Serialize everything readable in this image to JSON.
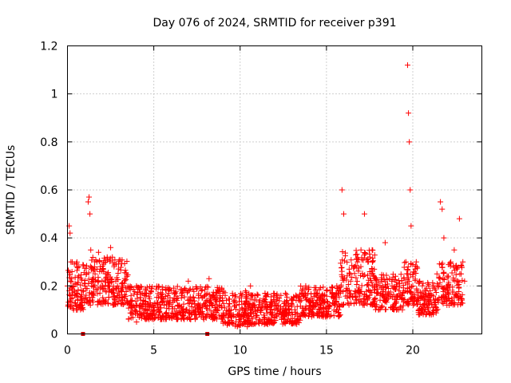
{
  "chart_data": {
    "type": "scatter",
    "title": "Day 076 of 2024, SRMTID for receiver p391",
    "xlabel": "GPS time / hours",
    "ylabel": "SRMTID / TECUs",
    "xlim": [
      0,
      24
    ],
    "ylim": [
      0,
      1.2
    ],
    "xticks": [
      0,
      5,
      10,
      15,
      20
    ],
    "xtick_labels": [
      "0",
      "5",
      "10",
      "15",
      "20"
    ],
    "yticks": [
      0,
      0.2,
      0.4,
      0.6,
      0.8,
      1.0,
      1.2
    ],
    "ytick_labels": [
      "0",
      "0.2",
      "0.4",
      "0.6",
      "0.8",
      "1",
      "1.2"
    ],
    "grid": true,
    "marker": "+",
    "color": "#ff0000",
    "series": [
      {
        "name": "SRMTID",
        "x": [
          0.0,
          0.1,
          0.15,
          0.2,
          0.25,
          0.3,
          0.4,
          0.5,
          0.6,
          0.7,
          0.8,
          0.9,
          1.0,
          1.1,
          1.2,
          1.25,
          1.3,
          1.35,
          1.4,
          1.5,
          1.6,
          1.7,
          1.8,
          1.9,
          2.0,
          2.1,
          2.2,
          2.3,
          2.4,
          2.5,
          2.6,
          2.7,
          2.8,
          2.9,
          3.0,
          3.1,
          3.2,
          3.3,
          3.5,
          3.7,
          3.9,
          4.0,
          4.2,
          4.4,
          4.6,
          4.8,
          5.0,
          5.2,
          5.4,
          5.6,
          5.8,
          6.0,
          6.2,
          6.4,
          6.6,
          6.8,
          7.0,
          7.2,
          7.4,
          7.6,
          7.8,
          8.0,
          8.2,
          8.4,
          8.6,
          8.8,
          9.0,
          9.2,
          9.4,
          9.6,
          9.8,
          10.0,
          10.2,
          10.4,
          10.6,
          10.8,
          11.0,
          11.2,
          11.4,
          11.6,
          11.8,
          12.0,
          12.2,
          12.4,
          12.6,
          12.8,
          13.0,
          13.2,
          13.4,
          13.6,
          13.8,
          14.0,
          14.2,
          14.4,
          14.6,
          14.8,
          15.0,
          15.2,
          15.4,
          15.6,
          15.8,
          15.9,
          16.0,
          16.2,
          16.4,
          16.6,
          16.8,
          17.0,
          17.2,
          17.4,
          17.6,
          17.8,
          18.0,
          18.2,
          18.4,
          18.6,
          18.8,
          19.0,
          19.2,
          19.4,
          19.6,
          19.7,
          19.75,
          19.8,
          19.85,
          19.9,
          20.0,
          20.2,
          20.4,
          20.6,
          20.8,
          21.0,
          21.2,
          21.4,
          21.6,
          21.7,
          21.8,
          22.0,
          22.2,
          22.4,
          22.6,
          22.7,
          22.8,
          22.9,
          23.0
        ],
        "y": [
          0.2,
          0.45,
          0.42,
          0.3,
          0.12,
          0.15,
          0.13,
          0.16,
          0.14,
          0.12,
          0.15,
          0.18,
          0.2,
          0.25,
          0.55,
          0.57,
          0.5,
          0.35,
          0.2,
          0.22,
          0.25,
          0.3,
          0.34,
          0.28,
          0.22,
          0.26,
          0.3,
          0.25,
          0.2,
          0.36,
          0.32,
          0.28,
          0.22,
          0.2,
          0.15,
          0.18,
          0.14,
          0.15,
          0.13,
          0.12,
          0.1,
          0.05,
          0.12,
          0.14,
          0.1,
          0.13,
          0.11,
          0.13,
          0.15,
          0.12,
          0.16,
          0.18,
          0.14,
          0.12,
          0.15,
          0.19,
          0.22,
          0.14,
          0.1,
          0.12,
          0.15,
          0.12,
          0.23,
          0.16,
          0.1,
          0.12,
          0.17,
          0.14,
          0.1,
          0.08,
          0.12,
          0.05,
          0.07,
          0.15,
          0.2,
          0.12,
          0.1,
          0.09,
          0.07,
          0.11,
          0.08,
          0.1,
          0.12,
          0.06,
          0.08,
          0.1,
          0.12,
          0.09,
          0.14,
          0.18,
          0.2,
          0.14,
          0.12,
          0.16,
          0.1,
          0.14,
          0.18,
          0.12,
          0.15,
          0.2,
          0.18,
          0.6,
          0.5,
          0.18,
          0.22,
          0.28,
          0.3,
          0.35,
          0.5,
          0.3,
          0.25,
          0.2,
          0.17,
          0.22,
          0.38,
          0.15,
          0.2,
          0.24,
          0.18,
          0.15,
          0.3,
          1.12,
          0.92,
          0.8,
          0.6,
          0.45,
          0.2,
          0.3,
          0.22,
          0.15,
          0.12,
          0.18,
          0.2,
          0.25,
          0.55,
          0.52,
          0.4,
          0.2,
          0.3,
          0.35,
          0.22,
          0.48,
          0.25,
          0.3,
          0.22
        ],
        "dense_bands": [
          [
            0,
            1,
            0.1,
            0.3
          ],
          [
            1,
            3.5,
            0.12,
            0.32
          ],
          [
            3.5,
            5,
            0.06,
            0.2
          ],
          [
            5,
            9,
            0.06,
            0.2
          ],
          [
            9,
            10.5,
            0.03,
            0.18
          ],
          [
            10.5,
            13.5,
            0.04,
            0.17
          ],
          [
            13.5,
            15.8,
            0.07,
            0.2
          ],
          [
            15.8,
            17.8,
            0.12,
            0.35
          ],
          [
            17.8,
            19.5,
            0.1,
            0.25
          ],
          [
            19.5,
            20.3,
            0.12,
            0.3
          ],
          [
            20.3,
            21.5,
            0.08,
            0.22
          ],
          [
            21.5,
            22.9,
            0.12,
            0.3
          ]
        ]
      }
    ],
    "gap_markers_x": [
      0.9,
      8.1
    ]
  }
}
